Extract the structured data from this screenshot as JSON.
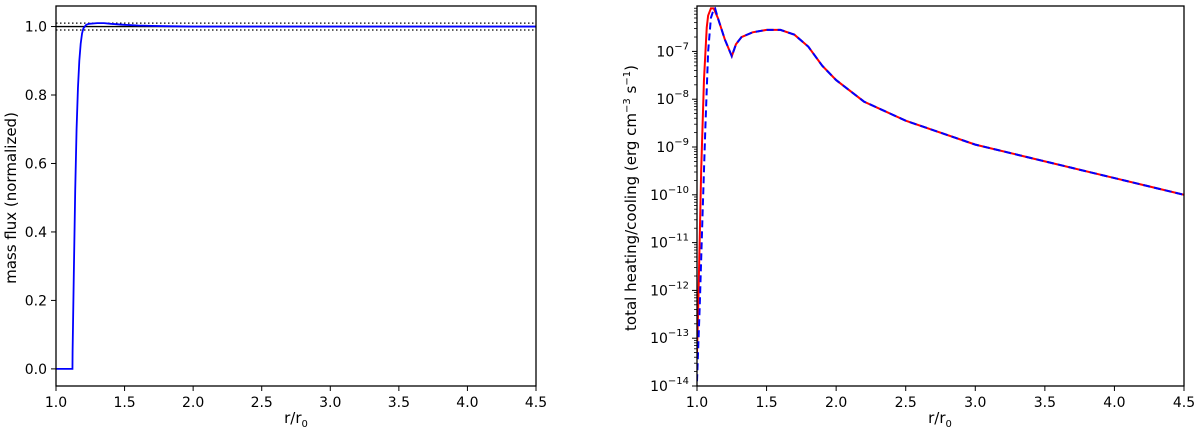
{
  "chart_data": [
    {
      "type": "line",
      "xlabel": "r/r",
      "xlabel_sub": "0",
      "ylabel": "mass flux (normalized)",
      "xlim": [
        1.0,
        4.5
      ],
      "ylim": [
        -0.05,
        1.06
      ],
      "xticks": [
        "1.0",
        "1.5",
        "2.0",
        "2.5",
        "3.0",
        "3.5",
        "4.0",
        "4.5"
      ],
      "yticks": [
        "0.0",
        "0.2",
        "0.4",
        "0.6",
        "0.8",
        "1.0"
      ],
      "reference_lines": [
        {
          "y": 1.0,
          "style": "solid",
          "color": "#000000"
        },
        {
          "y": 0.99,
          "style": "dotted",
          "color": "#000000"
        },
        {
          "y": 1.01,
          "style": "dotted",
          "color": "#000000"
        }
      ],
      "series": [
        {
          "color": "#0000ff",
          "style": "solid",
          "x": [
            1.0,
            1.12,
            1.121,
            1.13,
            1.14,
            1.15,
            1.16,
            1.17,
            1.18,
            1.19,
            1.2,
            1.21,
            1.22,
            1.24,
            1.27,
            1.3,
            1.35,
            1.4,
            1.5,
            1.6,
            1.7,
            1.8,
            2.0,
            2.5,
            3.0,
            3.5,
            4.0,
            4.5
          ],
          "y": [
            0.0,
            0.0,
            0.05,
            0.28,
            0.52,
            0.7,
            0.82,
            0.9,
            0.95,
            0.98,
            0.995,
            1.0,
            1.005,
            1.008,
            1.009,
            1.01,
            1.01,
            1.008,
            1.005,
            1.003,
            1.002,
            1.001,
            1.0,
            1.0,
            1.0,
            1.0,
            1.0,
            1.0
          ]
        }
      ]
    },
    {
      "type": "line",
      "xlabel": "r/r",
      "xlabel_sub": "0",
      "ylabel": "total heating/cooling (erg cm",
      "ylabel_exp1": "−3",
      "ylabel_mid": " s",
      "ylabel_exp2": "−1",
      "ylabel_end": ")",
      "yscale": "log",
      "xlim": [
        1.0,
        4.5
      ],
      "ylim_log10": [
        -14.0,
        -6.05
      ],
      "xticks": [
        "1.0",
        "1.5",
        "2.0",
        "2.5",
        "3.0",
        "3.5",
        "4.0",
        "4.5"
      ],
      "yticks": [
        {
          "base": "10",
          "exp": "−7"
        },
        {
          "base": "10",
          "exp": "−8"
        },
        {
          "base": "10",
          "exp": "−9"
        },
        {
          "base": "10",
          "exp": "−10"
        },
        {
          "base": "10",
          "exp": "−11"
        },
        {
          "base": "10",
          "exp": "−12"
        },
        {
          "base": "10",
          "exp": "−13"
        },
        {
          "base": "10",
          "exp": "−14"
        }
      ],
      "series": [
        {
          "color": "#ff0000",
          "style": "solid",
          "x": [
            1.0,
            1.01,
            1.03,
            1.05,
            1.07,
            1.08,
            1.1,
            1.12,
            1.15,
            1.2,
            1.25,
            1.28,
            1.32,
            1.4,
            1.5,
            1.6,
            1.7,
            1.8,
            1.9,
            2.0,
            2.2,
            2.5,
            3.0,
            3.5,
            4.0,
            4.5
          ],
          "log10y": [
            -13.3,
            -12.2,
            -9.5,
            -7.6,
            -6.5,
            -6.25,
            -6.1,
            -6.1,
            -6.3,
            -6.75,
            -7.1,
            -6.85,
            -6.7,
            -6.6,
            -6.55,
            -6.55,
            -6.65,
            -6.9,
            -7.3,
            -7.6,
            -8.05,
            -8.45,
            -8.95,
            -9.3,
            -9.65,
            -10.0
          ]
        },
        {
          "color": "#0000ff",
          "style": "dashed",
          "x": [
            1.0,
            1.02,
            1.04,
            1.06,
            1.08,
            1.1,
            1.12,
            1.13,
            1.15,
            1.2,
            1.25,
            1.28,
            1.32,
            1.4,
            1.5,
            1.6,
            1.7,
            1.8,
            1.9,
            2.0,
            2.2,
            2.5,
            3.0,
            3.5,
            4.0,
            4.5
          ],
          "log10y": [
            -13.9,
            -12.3,
            -10.4,
            -8.6,
            -7.0,
            -6.3,
            -6.12,
            -6.1,
            -6.3,
            -6.75,
            -7.1,
            -6.85,
            -6.7,
            -6.6,
            -6.55,
            -6.55,
            -6.65,
            -6.9,
            -7.3,
            -7.6,
            -8.05,
            -8.45,
            -8.95,
            -9.3,
            -9.65,
            -10.0
          ]
        }
      ]
    }
  ]
}
